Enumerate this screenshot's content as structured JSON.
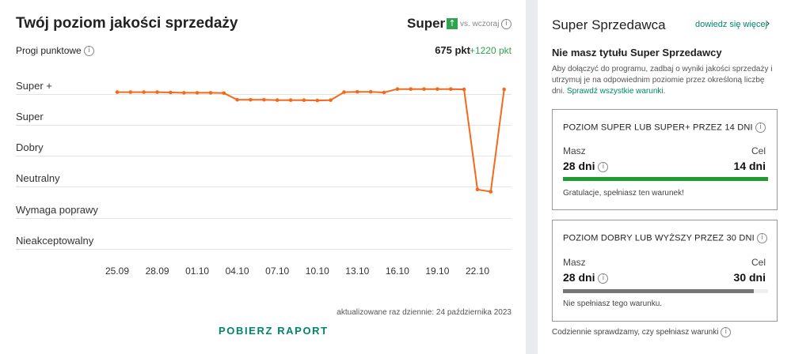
{
  "left": {
    "title": "Twój poziom jakości sprzedaży",
    "level": "Super",
    "vs_label": "vs. wczoraj",
    "thresholds_label": "Progi punktowe",
    "points": "675 pkt",
    "points_delta": "+1220 pkt",
    "updated": "aktualizowane raz dziennie: 24 października 2023",
    "report_button": "POBIERZ RAPORT",
    "colors": {
      "line": "#f26a1b",
      "up": "#2ea44f",
      "delta": "#2ea44f",
      "accent": "#00876a"
    }
  },
  "chart_data": {
    "type": "line",
    "y_categories": [
      "Super +",
      "Super",
      "Dobry",
      "Neutralny",
      "Wymaga poprawy",
      "Nieakceptowalny"
    ],
    "x_tick_labels": [
      "25.09",
      "28.09",
      "01.10",
      "04.10",
      "07.10",
      "10.10",
      "13.10",
      "16.10",
      "19.10",
      "22.10"
    ],
    "x": [
      "25.09",
      "26.09",
      "27.09",
      "28.09",
      "29.09",
      "30.09",
      "01.10",
      "02.10",
      "03.10",
      "04.10",
      "05.10",
      "06.10",
      "07.10",
      "08.10",
      "09.10",
      "10.10",
      "11.10",
      "12.10",
      "13.10",
      "14.10",
      "15.10",
      "16.10",
      "17.10",
      "18.10",
      "19.10",
      "20.10",
      "21.10",
      "22.10",
      "23.10",
      "24.10"
    ],
    "series": [
      {
        "values": [
          0.78,
          0.78,
          0.78,
          0.78,
          0.77,
          0.76,
          0.76,
          0.76,
          0.75,
          0.53,
          0.53,
          0.53,
          0.52,
          0.52,
          0.52,
          0.51,
          0.52,
          0.78,
          0.79,
          0.79,
          0.77,
          0.88,
          0.88,
          0.88,
          0.88,
          0.88,
          0.87,
          -2.38,
          -2.45,
          0.87
        ]
      }
    ],
    "y_scale_note": "y value: level index where Super+ = 1, Super = 0, Dobry = -1, Neutralny = -2, Wymaga poprawy = -3, Nieakceptowalny = -4"
  },
  "right": {
    "title": "Super Sprzedawca",
    "link": "dowiedz się więcej",
    "subtitle": "Nie masz tytułu Super Sprzedawcy",
    "desc1": "Aby dołączyć do programu, zadbaj o wyniki jakości sprzedaży i",
    "desc2": "utrzymuj je na odpowiednim poziomie przez określoną liczbę",
    "desc3": "dni.",
    "desc_link": "Sprawdź wszystkie warunki",
    "desc_end": ".",
    "card1": {
      "header": "POZIOM SUPER LUB SUPER+ PRZEZ 14 DNI",
      "have_label": "Masz",
      "have_value": "28 dni",
      "goal_label": "Cel",
      "goal_value": "14 dni",
      "progress": 1.0,
      "bar_color": "#1f9c2e",
      "note": "Gratulacje, spełniasz ten warunek!"
    },
    "card2": {
      "header": "POZIOM DOBRY LUB WYŻSZY PRZEZ 30 DNI",
      "have_label": "Masz",
      "have_value": "28 dni",
      "goal_label": "Cel",
      "goal_value": "30 dni",
      "progress": 0.93,
      "bar_color": "#767676",
      "note": "Nie spełniasz tego warunku."
    },
    "footer": "Codziennie sprawdzamy, czy spełniasz warunki"
  }
}
